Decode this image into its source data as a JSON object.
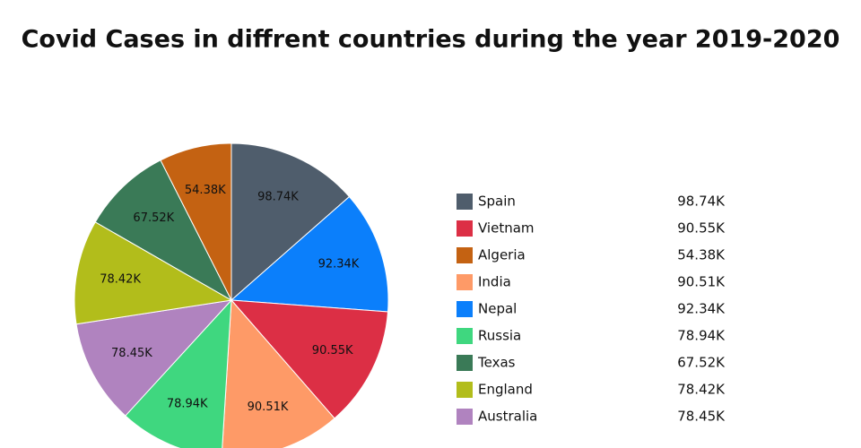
{
  "chart_data": {
    "type": "pie",
    "title": "Covid Cases in diffrent countries during the year 2019-2020",
    "categories": [
      "Spain",
      "Vietnam",
      "Algeria",
      "India",
      "Nepal",
      "Russia",
      "Texas",
      "England",
      "Australia"
    ],
    "values": [
      98740,
      90550,
      54380,
      90510,
      92340,
      78940,
      67520,
      78420,
      78450
    ],
    "value_labels": [
      "98.74K",
      "90.55K",
      "54.38K",
      "90.51K",
      "92.34K",
      "78.94K",
      "67.52K",
      "78.42K",
      "78.45K"
    ],
    "colors": [
      "#4f5d6c",
      "#dc2f45",
      "#c46212",
      "#fe9a67",
      "#0b7ffb",
      "#3fd77f",
      "#3a7a57",
      "#b2bd1b",
      "#b083bf"
    ]
  }
}
